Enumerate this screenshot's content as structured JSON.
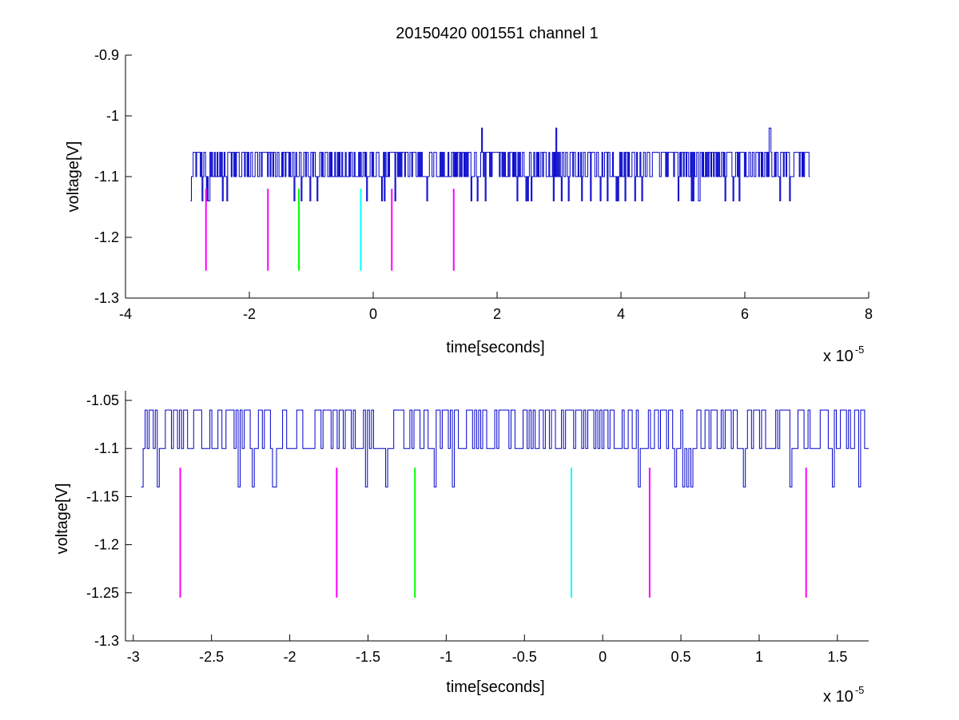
{
  "chart_data": [
    {
      "type": "line",
      "title": "20150420 001551 channel 1",
      "xlabel": "time[seconds]",
      "ylabel": "voltage[V]",
      "x_exponent_base": "x 10",
      "x_exponent_power": "-5",
      "xlim": [
        -4,
        8
      ],
      "ylim": [
        -1.3,
        -0.9
      ],
      "xticks": [
        "-4",
        "-2",
        "0",
        "2",
        "4",
        "6",
        "8"
      ],
      "xtick_values": [
        -4,
        -2,
        0,
        2,
        4,
        6,
        8
      ],
      "yticks": [
        "-0.9",
        "-1",
        "-1.1",
        "-1.2",
        "-1.3"
      ],
      "ytick_values": [
        -0.9,
        -1.0,
        -1.1,
        -1.2,
        -1.3
      ],
      "grid": false,
      "trace": {
        "color": "#0000cc",
        "x_range": [
          -2.95,
          7.05
        ],
        "samples": 700,
        "levels": [
          -1.14,
          -1.1,
          -1.06
        ],
        "spikes": [
          {
            "x": 1.75,
            "y": -1.02
          },
          {
            "x": 2.95,
            "y": -1.02
          },
          {
            "x": 6.4,
            "y": -1.02
          }
        ]
      },
      "markers": [
        {
          "x": -2.7,
          "y_top": -1.12,
          "y_bottom": -1.255,
          "color": "#ff00ff"
        },
        {
          "x": -1.7,
          "y_top": -1.12,
          "y_bottom": -1.255,
          "color": "#ff00ff"
        },
        {
          "x": -1.2,
          "y_top": -1.12,
          "y_bottom": -1.255,
          "color": "#00ff00"
        },
        {
          "x": -0.2,
          "y_top": -1.12,
          "y_bottom": -1.255,
          "color": "#00ffff"
        },
        {
          "x": 0.3,
          "y_top": -1.12,
          "y_bottom": -1.255,
          "color": "#ff00ff"
        },
        {
          "x": 1.3,
          "y_top": -1.12,
          "y_bottom": -1.255,
          "color": "#ff00ff"
        }
      ]
    },
    {
      "type": "line",
      "title": "",
      "xlabel": "time[seconds]",
      "ylabel": "voltage[V]",
      "x_exponent_base": "x 10",
      "x_exponent_power": "-5",
      "xlim": [
        -3.05,
        1.7
      ],
      "ylim": [
        -1.3,
        -1.04
      ],
      "xticks": [
        "-3",
        "-2.5",
        "-2",
        "-1.5",
        "-1",
        "-0.5",
        "0",
        "0.5",
        "1",
        "1.5"
      ],
      "xtick_values": [
        -3,
        -2.5,
        -2,
        -1.5,
        -1,
        -0.5,
        0,
        0.5,
        1,
        1.5
      ],
      "yticks": [
        "-1.05",
        "-1.1",
        "-1.15",
        "-1.2",
        "-1.25",
        "-1.3"
      ],
      "ytick_values": [
        -1.05,
        -1.1,
        -1.15,
        -1.2,
        -1.25,
        -1.3
      ],
      "grid": false,
      "trace": {
        "color": "#0000cc",
        "x_range": [
          -2.95,
          1.7
        ],
        "samples": 360,
        "levels": [
          -1.14,
          -1.1,
          -1.06
        ],
        "spikes": []
      },
      "markers": [
        {
          "x": -2.7,
          "y_top": -1.12,
          "y_bottom": -1.255,
          "color": "#ff00ff"
        },
        {
          "x": -1.7,
          "y_top": -1.12,
          "y_bottom": -1.255,
          "color": "#ff00ff"
        },
        {
          "x": -1.2,
          "y_top": -1.12,
          "y_bottom": -1.255,
          "color": "#00ff00"
        },
        {
          "x": -0.2,
          "y_top": -1.12,
          "y_bottom": -1.255,
          "color": "#00ffff"
        },
        {
          "x": 0.3,
          "y_top": -1.12,
          "y_bottom": -1.255,
          "color": "#ff00ff"
        },
        {
          "x": 1.3,
          "y_top": -1.12,
          "y_bottom": -1.255,
          "color": "#ff00ff"
        }
      ]
    }
  ]
}
